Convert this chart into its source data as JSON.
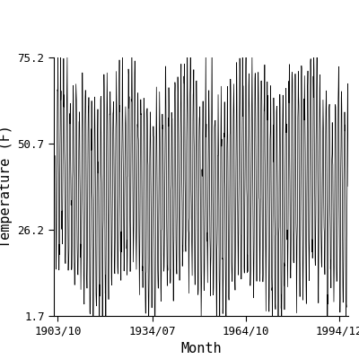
{
  "title": "",
  "xlabel": "Month",
  "ylabel": "Temperature (F)",
  "yticks": [
    1.7,
    26.2,
    50.7,
    75.2
  ],
  "xtick_labels": [
    "1903/10",
    "1934/07",
    "1964/10",
    "1994/12"
  ],
  "xtick_positions_year_month": [
    [
      1903,
      10
    ],
    [
      1934,
      7
    ],
    [
      1964,
      10
    ],
    [
      1994,
      12
    ]
  ],
  "data_start_year": 1903,
  "data_start_month": 1,
  "data_end_year": 1997,
  "data_end_month": 12,
  "ylim": [
    1.7,
    75.2
  ],
  "xlim_start": [
    1902,
    7
  ],
  "xlim_end": [
    1997,
    12
  ],
  "line_color": "#000000",
  "line_width": 0.5,
  "background_color": "#ffffff",
  "seasonal_mean": 38.45,
  "seasonal_amplitude": 28.0,
  "noise_std": 4.5,
  "font_size_ticks": 9,
  "font_size_labels": 11
}
